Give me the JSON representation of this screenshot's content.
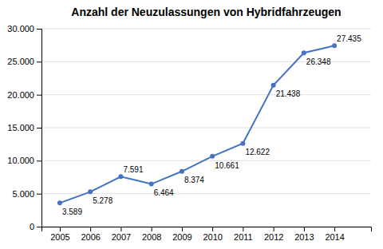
{
  "chart_data": {
    "type": "line",
    "title": "Anzahl der Neuzulassungen von Hybridfahrzeugen",
    "x": [
      2005,
      2006,
      2007,
      2008,
      2009,
      2010,
      2011,
      2012,
      2013,
      2014
    ],
    "values": [
      3589,
      5278,
      7591,
      6464,
      8374,
      10661,
      12622,
      21438,
      26348,
      27435
    ],
    "value_labels": [
      "3.589",
      "5.278",
      "7.591",
      "6.464",
      "8.374",
      "10.661",
      "12.622",
      "21.438",
      "26.348",
      "27.435"
    ],
    "data_labels": true,
    "color": "#4472C4",
    "marker": "circle",
    "xlim": [
      2004.4,
      2015.2
    ],
    "xticks": [
      2005,
      2006,
      2007,
      2008,
      2009,
      2010,
      2011,
      2012,
      2013,
      2014
    ],
    "ylim": [
      0,
      30000
    ],
    "yticks": [
      0,
      {
        "value": 5000,
        "label": "5.000"
      },
      {
        "value": 10000,
        "label": "10.000"
      },
      {
        "value": 15000,
        "label": "15.000"
      },
      {
        "value": 20000,
        "label": "20.000"
      },
      {
        "value": 25000,
        "label": "25.000"
      },
      {
        "value": 30000,
        "label": "30.000"
      }
    ],
    "grid": "y"
  }
}
